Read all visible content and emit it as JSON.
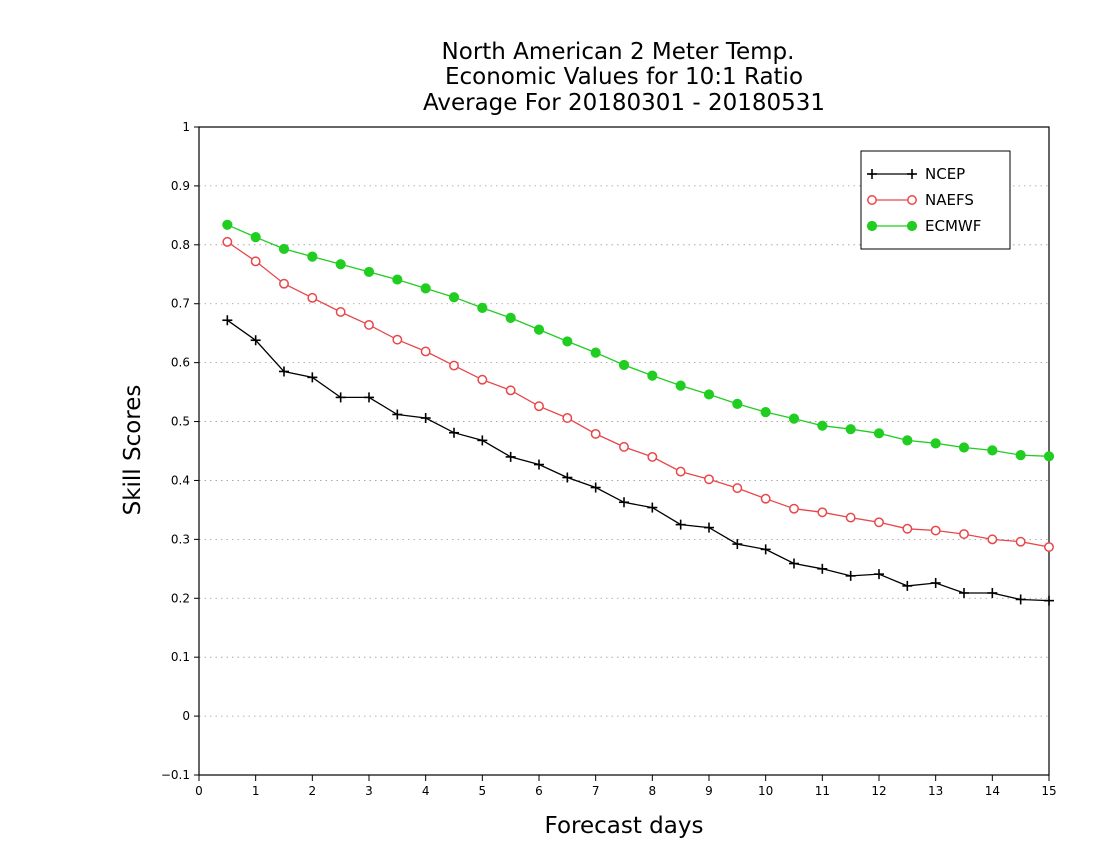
{
  "chart_data": {
    "type": "line",
    "title": [
      "North American 2 Meter Temp.",
      "Economic Values for 10:1 Ratio",
      "Average For 20180301 - 20180531"
    ],
    "xlabel": "Forecast days",
    "ylabel": "Skill Scores",
    "xlim": [
      0,
      15
    ],
    "ylim": [
      -0.1,
      1
    ],
    "xticks": [
      0,
      1,
      2,
      3,
      4,
      5,
      6,
      7,
      8,
      9,
      10,
      11,
      12,
      13,
      14,
      15
    ],
    "yticks": [
      -0.1,
      0,
      0.1,
      0.2,
      0.3,
      0.4,
      0.5,
      0.6,
      0.7,
      0.8,
      0.9,
      1
    ],
    "ytick_labels": [
      "−0.1",
      "0",
      "0.1",
      "0.2",
      "0.3",
      "0.4",
      "0.5",
      "0.6",
      "0.7",
      "0.8",
      "0.9",
      "1"
    ],
    "grid": true,
    "legend_position": "top-right",
    "x": [
      0.5,
      1,
      1.5,
      2,
      2.5,
      3,
      3.5,
      4,
      4.5,
      5,
      5.5,
      6,
      6.5,
      7,
      7.5,
      8,
      8.5,
      9,
      9.5,
      10,
      10.5,
      11,
      11.5,
      12,
      12.5,
      13,
      13.5,
      14,
      14.5,
      15
    ],
    "series": [
      {
        "name": "NCEP",
        "color": "#000000",
        "marker": "plus",
        "values": [
          0.672,
          0.638,
          0.585,
          0.575,
          0.541,
          0.541,
          0.512,
          0.506,
          0.481,
          0.468,
          0.44,
          0.427,
          0.405,
          0.388,
          0.363,
          0.354,
          0.325,
          0.32,
          0.292,
          0.283,
          0.259,
          0.25,
          0.238,
          0.241,
          0.221,
          0.226,
          0.209,
          0.209,
          0.198,
          0.196
        ]
      },
      {
        "name": "NAEFS",
        "color": "#e8474a",
        "marker": "open-circle",
        "values": [
          0.805,
          0.772,
          0.734,
          0.71,
          0.686,
          0.664,
          0.639,
          0.619,
          0.595,
          0.571,
          0.553,
          0.526,
          0.506,
          0.479,
          0.457,
          0.44,
          0.415,
          0.402,
          0.387,
          0.369,
          0.352,
          0.346,
          0.337,
          0.329,
          0.318,
          0.315,
          0.309,
          0.3,
          0.296,
          0.287
        ]
      },
      {
        "name": "ECMWF",
        "color": "#21cd21",
        "marker": "filled-circle",
        "values": [
          0.834,
          0.813,
          0.793,
          0.78,
          0.767,
          0.754,
          0.741,
          0.726,
          0.711,
          0.693,
          0.676,
          0.656,
          0.636,
          0.617,
          0.596,
          0.578,
          0.561,
          0.546,
          0.53,
          0.516,
          0.505,
          0.493,
          0.487,
          0.48,
          0.468,
          0.463,
          0.456,
          0.451,
          0.443,
          0.441
        ]
      }
    ]
  }
}
